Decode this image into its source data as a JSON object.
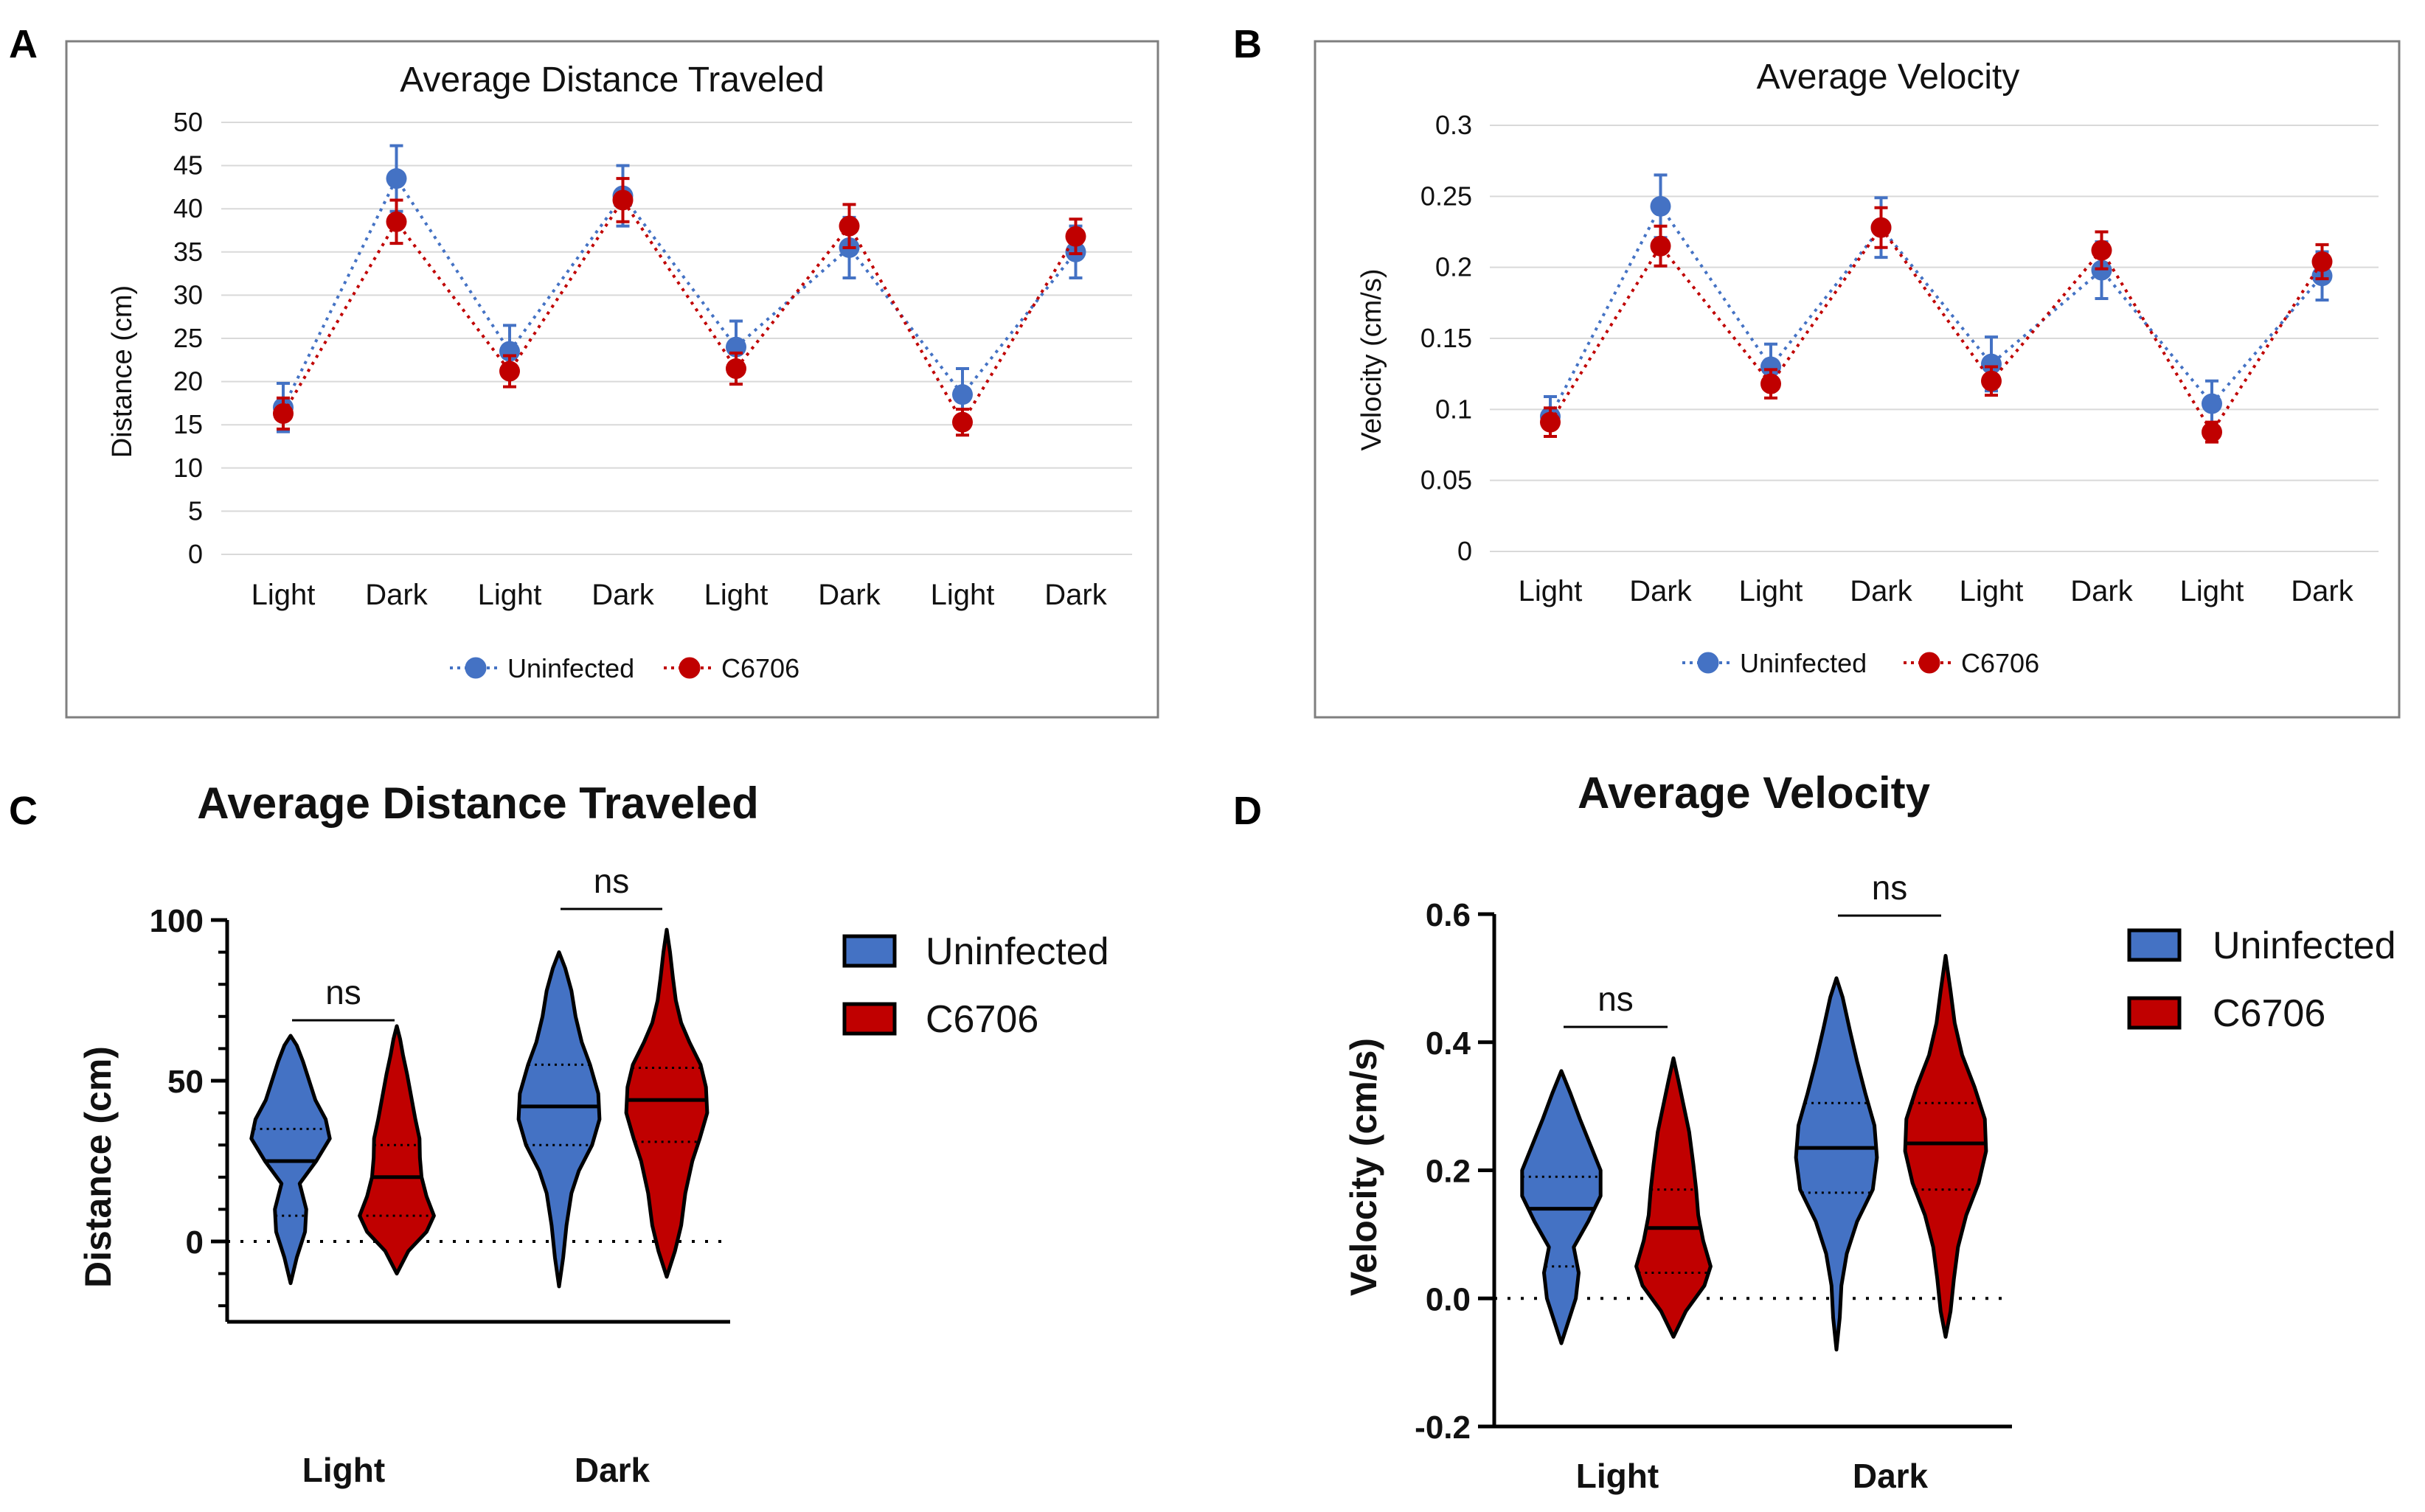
{
  "colors": {
    "uninfected": "#4472c4",
    "c6706": "#c00000",
    "violin_uninfected": "#4472c4",
    "violin_c6706": "#c00000",
    "grid": "#d9d9d9",
    "frame": "#7f7f7f"
  },
  "chart_data": [
    {
      "panel": "A",
      "type": "line",
      "title": "Average Distance Traveled",
      "xlabel": "",
      "ylabel": "Distance (cm)",
      "ylim": [
        0,
        50
      ],
      "yticks": [
        "0",
        "5",
        "10",
        "15",
        "20",
        "25",
        "30",
        "35",
        "40",
        "45",
        "50"
      ],
      "ytick_values": [
        0,
        5,
        10,
        15,
        20,
        25,
        30,
        35,
        40,
        45,
        50
      ],
      "categories": [
        "Light",
        "Dark",
        "Light",
        "Dark",
        "Light",
        "Dark",
        "Light",
        "Dark"
      ],
      "legend_position": "bottom",
      "series": [
        {
          "name": "Uninfected",
          "color_key": "uninfected",
          "values": [
            17,
            43.5,
            23.5,
            41.5,
            24,
            35.5,
            18.5,
            35
          ],
          "errors": [
            2.8,
            3.8,
            3.0,
            3.5,
            3.0,
            3.5,
            3.0,
            3.0
          ]
        },
        {
          "name": "C6706",
          "color_key": "c6706",
          "values": [
            16.3,
            38.5,
            21.2,
            41,
            21.5,
            38,
            15.3,
            36.8
          ],
          "errors": [
            1.8,
            2.5,
            1.8,
            2.5,
            1.8,
            2.5,
            1.5,
            2.0
          ]
        }
      ]
    },
    {
      "panel": "B",
      "type": "line",
      "title": "Average Velocity",
      "xlabel": "",
      "ylabel": "Velocity (cm/s)",
      "ylim": [
        0,
        0.3
      ],
      "yticks": [
        "0",
        "0.05",
        "0.1",
        "0.15",
        "0.2",
        "0.25",
        "0.3"
      ],
      "ytick_values": [
        0,
        0.05,
        0.1,
        0.15,
        0.2,
        0.25,
        0.3
      ],
      "categories": [
        "Light",
        "Dark",
        "Light",
        "Dark",
        "Light",
        "Dark",
        "Light",
        "Dark"
      ],
      "legend_position": "bottom",
      "series": [
        {
          "name": "Uninfected",
          "color_key": "uninfected",
          "values": [
            0.095,
            0.243,
            0.13,
            0.228,
            0.132,
            0.198,
            0.104,
            0.194
          ],
          "errors": [
            0.014,
            0.022,
            0.016,
            0.021,
            0.019,
            0.02,
            0.016,
            0.017
          ]
        },
        {
          "name": "C6706",
          "color_key": "c6706",
          "values": [
            0.091,
            0.215,
            0.118,
            0.228,
            0.12,
            0.212,
            0.084,
            0.204
          ],
          "errors": [
            0.01,
            0.014,
            0.01,
            0.014,
            0.01,
            0.013,
            0.007,
            0.012
          ]
        }
      ]
    },
    {
      "panel": "C",
      "type": "violin",
      "title": "Average Distance Traveled",
      "xlabel": "",
      "ylabel": "Distance (cm)",
      "ylim": [
        -25,
        100
      ],
      "yticks": [
        "0",
        "50",
        "100"
      ],
      "ytick_values": [
        0,
        50,
        100
      ],
      "categories": [
        "Light",
        "Dark"
      ],
      "significance": [
        "ns",
        "ns"
      ],
      "legend_position": "top-right",
      "series": [
        {
          "name": "Uninfected",
          "color_key": "violin_uninfected",
          "groups": [
            {
              "min": -13,
              "max": 64,
              "median": 25,
              "q1": 8,
              "q3": 35,
              "profile": [
                [
                  -13,
                  0
                ],
                [
                  -5,
                  0.15
                ],
                [
                  3,
                  0.35
                ],
                [
                  10,
                  0.38
                ],
                [
                  18,
                  0.22
                ],
                [
                  25,
                  0.62
                ],
                [
                  32,
                  0.95
                ],
                [
                  38,
                  0.85
                ],
                [
                  44,
                  0.6
                ],
                [
                  50,
                  0.45
                ],
                [
                  56,
                  0.3
                ],
                [
                  61,
                  0.15
                ],
                [
                  64,
                  0
                ]
              ]
            },
            {
              "min": -14,
              "max": 90,
              "median": 42,
              "q1": 30,
              "q3": 55,
              "profile": [
                [
                  -14,
                  0
                ],
                [
                  -5,
                  0.1
                ],
                [
                  5,
                  0.18
                ],
                [
                  15,
                  0.3
                ],
                [
                  22,
                  0.48
                ],
                [
                  30,
                  0.8
                ],
                [
                  38,
                  0.98
                ],
                [
                  46,
                  0.95
                ],
                [
                  55,
                  0.75
                ],
                [
                  62,
                  0.55
                ],
                [
                  70,
                  0.4
                ],
                [
                  78,
                  0.3
                ],
                [
                  85,
                  0.15
                ],
                [
                  90,
                  0
                ]
              ]
            }
          ]
        },
        {
          "name": "C6706",
          "color_key": "violin_c6706",
          "groups": [
            {
              "min": -10,
              "max": 67,
              "median": 20,
              "q1": 8,
              "q3": 30,
              "profile": [
                [
                  -10,
                  0
                ],
                [
                  -3,
                  0.28
                ],
                [
                  3,
                  0.72
                ],
                [
                  8,
                  0.9
                ],
                [
                  14,
                  0.72
                ],
                [
                  20,
                  0.6
                ],
                [
                  26,
                  0.56
                ],
                [
                  32,
                  0.55
                ],
                [
                  38,
                  0.45
                ],
                [
                  45,
                  0.35
                ],
                [
                  52,
                  0.25
                ],
                [
                  58,
                  0.15
                ],
                [
                  63,
                  0.08
                ],
                [
                  67,
                  0
                ]
              ]
            },
            {
              "min": -11,
              "max": 97,
              "median": 44,
              "q1": 31,
              "q3": 54,
              "profile": [
                [
                  -11,
                  0
                ],
                [
                  -3,
                  0.2
                ],
                [
                  5,
                  0.35
                ],
                [
                  15,
                  0.45
                ],
                [
                  25,
                  0.62
                ],
                [
                  32,
                  0.8
                ],
                [
                  40,
                  0.98
                ],
                [
                  48,
                  0.95
                ],
                [
                  55,
                  0.82
                ],
                [
                  62,
                  0.55
                ],
                [
                  68,
                  0.35
                ],
                [
                  75,
                  0.22
                ],
                [
                  82,
                  0.15
                ],
                [
                  90,
                  0.08
                ],
                [
                  97,
                  0
                ]
              ]
            }
          ]
        }
      ]
    },
    {
      "panel": "D",
      "type": "violin",
      "title": "Average Velocity",
      "xlabel": "",
      "ylabel": "Velocity (cm/s)",
      "ylim": [
        -0.2,
        0.6
      ],
      "yticks": [
        "-0.2",
        "0.0",
        "0.2",
        "0.4",
        "0.6"
      ],
      "ytick_values": [
        -0.2,
        0.0,
        0.2,
        0.4,
        0.6
      ],
      "categories": [
        "Light",
        "Dark"
      ],
      "significance": [
        "ns",
        "ns"
      ],
      "legend_position": "top-right",
      "series": [
        {
          "name": "Uninfected",
          "color_key": "violin_uninfected",
          "groups": [
            {
              "min": -0.07,
              "max": 0.355,
              "median": 0.14,
              "q1": 0.05,
              "q3": 0.19,
              "profile": [
                [
                  -0.07,
                  0
                ],
                [
                  -0.03,
                  0.2
                ],
                [
                  0.0,
                  0.35
                ],
                [
                  0.04,
                  0.42
                ],
                [
                  0.08,
                  0.3
                ],
                [
                  0.12,
                  0.65
                ],
                [
                  0.16,
                  0.95
                ],
                [
                  0.2,
                  0.95
                ],
                [
                  0.24,
                  0.7
                ],
                [
                  0.28,
                  0.45
                ],
                [
                  0.32,
                  0.22
                ],
                [
                  0.355,
                  0
                ]
              ]
            },
            {
              "min": -0.08,
              "max": 0.5,
              "median": 0.235,
              "q1": 0.165,
              "q3": 0.305,
              "profile": [
                [
                  -0.08,
                  0
                ],
                [
                  -0.03,
                  0.08
                ],
                [
                  0.02,
                  0.12
                ],
                [
                  0.07,
                  0.25
                ],
                [
                  0.12,
                  0.5
                ],
                [
                  0.17,
                  0.88
                ],
                [
                  0.22,
                  0.98
                ],
                [
                  0.27,
                  0.92
                ],
                [
                  0.32,
                  0.7
                ],
                [
                  0.37,
                  0.5
                ],
                [
                  0.42,
                  0.32
                ],
                [
                  0.47,
                  0.15
                ],
                [
                  0.5,
                  0
                ]
              ]
            }
          ]
        },
        {
          "name": "C6706",
          "color_key": "violin_c6706",
          "groups": [
            {
              "min": -0.06,
              "max": 0.375,
              "median": 0.11,
              "q1": 0.04,
              "q3": 0.17,
              "profile": [
                [
                  -0.06,
                  0
                ],
                [
                  -0.02,
                  0.3
                ],
                [
                  0.02,
                  0.75
                ],
                [
                  0.05,
                  0.9
                ],
                [
                  0.09,
                  0.72
                ],
                [
                  0.13,
                  0.6
                ],
                [
                  0.17,
                  0.55
                ],
                [
                  0.21,
                  0.48
                ],
                [
                  0.26,
                  0.38
                ],
                [
                  0.3,
                  0.25
                ],
                [
                  0.34,
                  0.12
                ],
                [
                  0.375,
                  0
                ]
              ]
            },
            {
              "min": -0.06,
              "max": 0.535,
              "median": 0.242,
              "q1": 0.17,
              "q3": 0.305,
              "profile": [
                [
                  -0.06,
                  0
                ],
                [
                  -0.02,
                  0.12
                ],
                [
                  0.03,
                  0.2
                ],
                [
                  0.08,
                  0.3
                ],
                [
                  0.13,
                  0.5
                ],
                [
                  0.18,
                  0.8
                ],
                [
                  0.23,
                  0.98
                ],
                [
                  0.28,
                  0.95
                ],
                [
                  0.33,
                  0.7
                ],
                [
                  0.38,
                  0.4
                ],
                [
                  0.43,
                  0.22
                ],
                [
                  0.48,
                  0.12
                ],
                [
                  0.535,
                  0
                ]
              ]
            }
          ]
        }
      ]
    }
  ],
  "panel_labels": [
    "A",
    "B",
    "C",
    "D"
  ]
}
